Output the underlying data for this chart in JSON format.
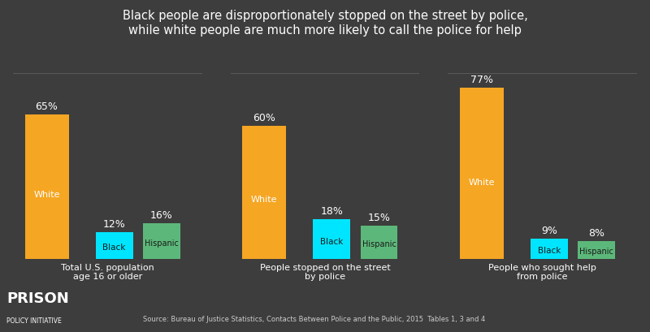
{
  "title_line1": "Black people are disproportionately stopped on the street by police,",
  "title_line2": "while white people are much more likely to call the police for help",
  "background_color": "#3d3d3d",
  "text_color": "#ffffff",
  "bar_color_white": "#f5a623",
  "bar_color_black": "#00e5ff",
  "bar_color_hispanic": "#5cb87a",
  "groups": [
    {
      "label": "Total U.S. population\nage 16 or older",
      "white": 65,
      "black": 12,
      "hispanic": 16
    },
    {
      "label": "People stopped on the street\nby police",
      "white": 60,
      "black": 18,
      "hispanic": 15
    },
    {
      "label": "People who sought help\nfrom police",
      "white": 77,
      "black": 9,
      "hispanic": 8
    }
  ],
  "source_text": "Source: Bureau of Justice Statistics, Contacts Between Police and the Public, 2015  Tables 1, 3 and 4",
  "logo_text_prison": "PRISON",
  "logo_text_sub": "POLICY INITIATIVE",
  "ylim": [
    0,
    90
  ]
}
